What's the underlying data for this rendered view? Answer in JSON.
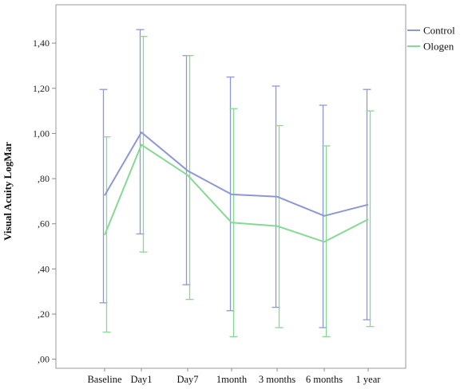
{
  "chart_data": {
    "type": "line",
    "title": "",
    "xlabel": "",
    "ylabel": "Visual  Acuity LogMar",
    "categories": [
      "Baseline",
      "Day1",
      "Day7",
      "1month",
      "3 months",
      "6 months",
      "1 year"
    ],
    "ylim": [
      -0.04,
      1.57
    ],
    "yticks": [
      0.0,
      0.2,
      0.4,
      0.6,
      0.8,
      1.0,
      1.2,
      1.4
    ],
    "ytick_labels": [
      ",00",
      ",20",
      ",40",
      ",60",
      ",80",
      "1,00",
      "1,20",
      "1,40"
    ],
    "grid": false,
    "legend_position": "top-right",
    "error_bars": true,
    "series": [
      {
        "name": "Control",
        "color": "#8e97d6",
        "values": [
          0.725,
          1.005,
          0.835,
          0.73,
          0.72,
          0.635,
          0.685
        ],
        "lower": [
          0.25,
          0.555,
          0.33,
          0.215,
          0.23,
          0.14,
          0.175
        ],
        "upper": [
          1.195,
          1.46,
          1.345,
          1.25,
          1.21,
          1.125,
          1.195
        ]
      },
      {
        "name": "Ologen",
        "color": "#86d993",
        "values": [
          0.55,
          0.95,
          0.815,
          0.605,
          0.59,
          0.52,
          0.62
        ],
        "lower": [
          0.12,
          0.475,
          0.265,
          0.1,
          0.14,
          0.1,
          0.145
        ],
        "upper": [
          0.985,
          1.43,
          1.345,
          1.11,
          1.035,
          0.945,
          1.1
        ]
      }
    ]
  }
}
